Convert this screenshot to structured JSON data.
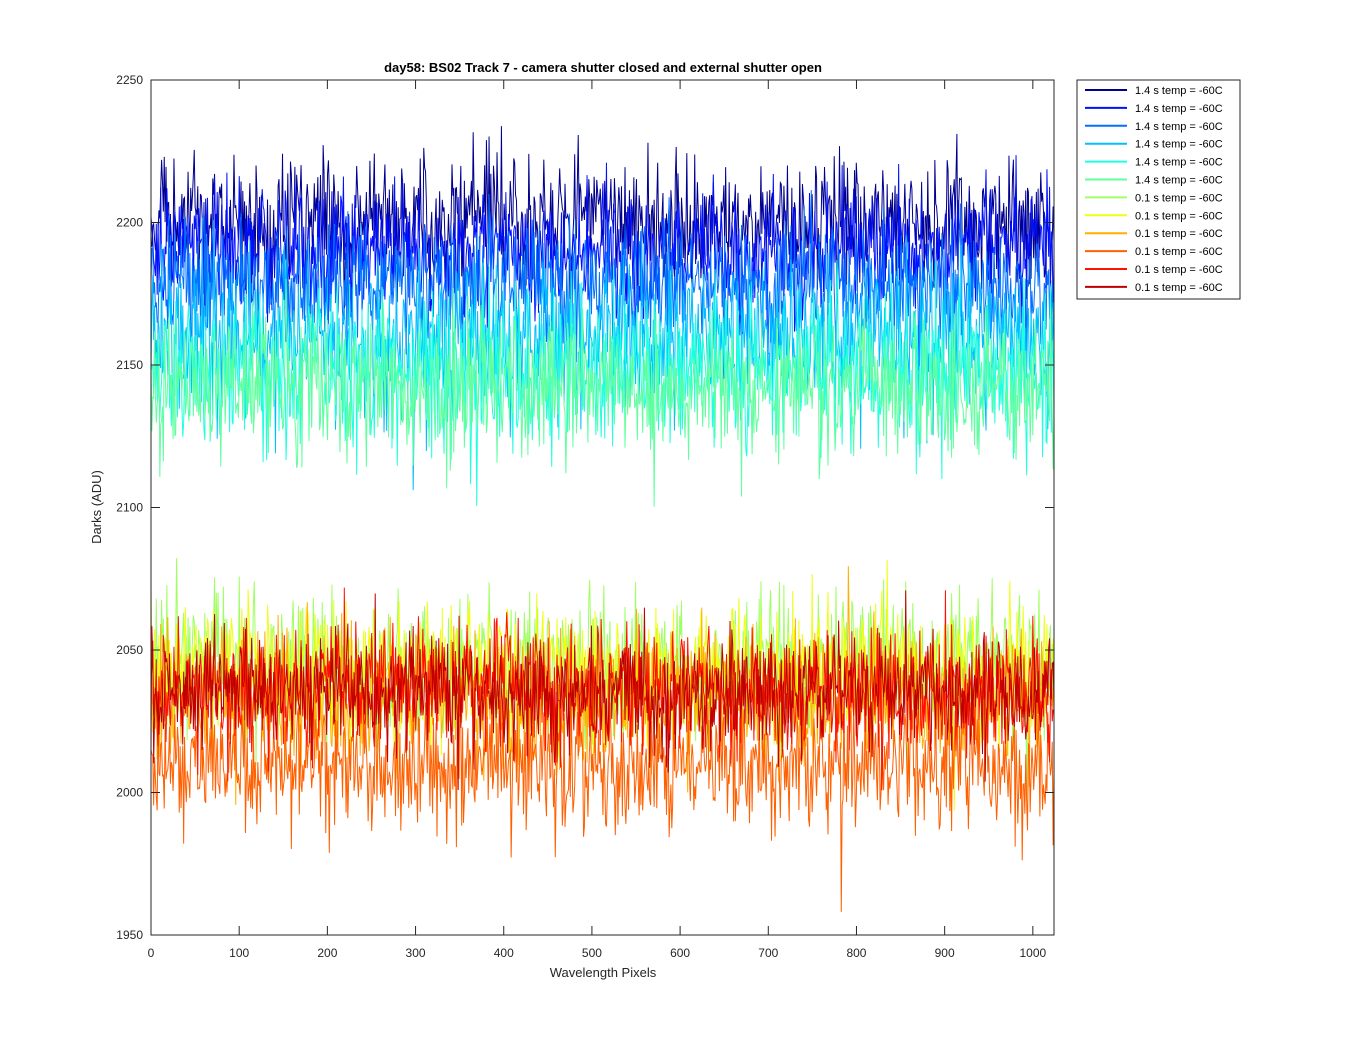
{
  "chart_data": {
    "type": "line",
    "title": "day58: BS02  Track 7 - camera shutter closed and external shutter open",
    "xlabel": "Wavelength Pixels",
    "ylabel": "Darks (ADU)",
    "xlim": [
      0,
      1024
    ],
    "ylim": [
      1950,
      2250
    ],
    "xticks": [
      0,
      100,
      200,
      300,
      400,
      500,
      600,
      700,
      800,
      900,
      1000
    ],
    "yticks": [
      1950,
      2000,
      2050,
      2100,
      2150,
      2200,
      2250
    ],
    "grid": false,
    "legend_position": "outside-top-right",
    "points_per_series": 1024,
    "series": [
      {
        "name": "1.4 s temp = -60C",
        "color": "#00008f",
        "mean": 2200,
        "noise": 11
      },
      {
        "name": "1.4 s temp = -60C",
        "color": "#0010ff",
        "mean": 2190,
        "noise": 11
      },
      {
        "name": "1.4 s temp = -60C",
        "color": "#0070ff",
        "mean": 2178,
        "noise": 11
      },
      {
        "name": "1.4 s temp = -60C",
        "color": "#00bfff",
        "mean": 2160,
        "noise": 13
      },
      {
        "name": "1.4 s temp = -60C",
        "color": "#20ffdf",
        "mean": 2148,
        "noise": 13
      },
      {
        "name": "1.4 s temp = -60C",
        "color": "#60ff9f",
        "mean": 2143,
        "noise": 12
      },
      {
        "name": "0.1 s temp = -60C",
        "color": "#9fff60",
        "mean": 2044,
        "noise": 12
      },
      {
        "name": "0.1 s temp = -60C",
        "color": "#efff10",
        "mean": 2042,
        "noise": 12
      },
      {
        "name": "0.1 s temp = -60C",
        "color": "#ffaf00",
        "mean": 2033,
        "noise": 12
      },
      {
        "name": "0.1 s temp = -60C",
        "color": "#ff6000",
        "mean": 2010,
        "noise": 11
      },
      {
        "name": "0.1 s temp = -60C",
        "color": "#ff1000",
        "mean": 2036,
        "noise": 11
      },
      {
        "name": "0.1 s temp = -60C",
        "color": "#bf0000",
        "mean": 2035,
        "noise": 10
      }
    ]
  }
}
